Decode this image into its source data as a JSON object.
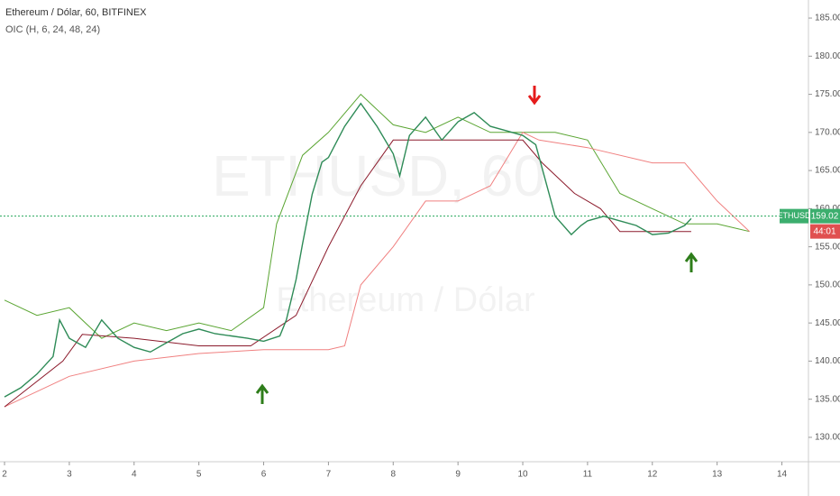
{
  "chart_data": {
    "type": "line",
    "title": "Ethereum / Dólar, 60, BITFINEX",
    "subtitle": "OIC (H, 6, 24, 48, 24)",
    "watermark": "ETHUSD, 60",
    "watermark_subtitle": "Ethereum / Dólar",
    "symbol_label": "ETHUSD",
    "last_price": 159.02,
    "last_price_label": "159.02",
    "countdown": "44:01",
    "grid": false,
    "xlim": [
      1.93,
      14.41
    ],
    "xticks": [
      2,
      3,
      4,
      5,
      6,
      7,
      8,
      9,
      10,
      11,
      12,
      13,
      14
    ],
    "ylim": [
      126.8,
      187.37
    ],
    "yticks": [
      {
        "value": 130,
        "label": "130.00"
      },
      {
        "value": 135,
        "label": "135.00"
      },
      {
        "value": 140,
        "label": "140.00"
      },
      {
        "value": 145,
        "label": "145.00"
      },
      {
        "value": 150,
        "label": "150.00"
      },
      {
        "value": 155,
        "label": "155.00"
      },
      {
        "value": 160,
        "label": "160.00"
      },
      {
        "value": 165,
        "label": "165.00"
      },
      {
        "value": 170,
        "label": "170.00"
      },
      {
        "value": 175,
        "label": "175.00"
      },
      {
        "value": 180,
        "label": "180.00"
      },
      {
        "value": 185,
        "label": "185.00"
      }
    ],
    "series": [
      {
        "color": "#5aa532",
        "x": [
          2,
          2.5,
          3,
          3.5,
          4,
          4.5,
          5,
          5.5,
          6,
          6.2,
          6.6,
          7,
          7.5,
          8,
          8.5,
          9,
          9.5,
          10,
          10.5,
          11,
          11.5,
          12,
          12.5,
          13,
          13.5
        ],
        "values": [
          148,
          146,
          147,
          143,
          145,
          144,
          145,
          144,
          147,
          158,
          167,
          170,
          175,
          171,
          170,
          172,
          170,
          170,
          170,
          169,
          162,
          160,
          158,
          158,
          157
        ]
      },
      {
        "color": "#f08080",
        "x": [
          2,
          3,
          4,
          5,
          6,
          7,
          7.25,
          7.5,
          8,
          8.5,
          9,
          9.5,
          10,
          10.25,
          11,
          12,
          12.5,
          13,
          13.5
        ],
        "values": [
          134,
          138,
          140,
          141,
          141.5,
          141.5,
          142,
          150,
          155,
          161,
          161,
          163,
          170,
          169,
          168,
          166,
          166,
          161,
          157
        ]
      },
      {
        "color": "#8b1a2b",
        "x": [
          2,
          2.9,
          3.2,
          4,
          5,
          5.8,
          6.5,
          7,
          7.5,
          8,
          9,
          10,
          10.3,
          10.8,
          11.2,
          11.5,
          12.6
        ],
        "values": [
          134,
          140,
          143.5,
          143,
          142,
          142,
          146,
          155,
          163,
          169,
          169,
          169,
          166,
          162,
          160,
          157,
          157
        ]
      },
      {
        "color": "#2e8b57",
        "x": [
          2,
          2.25,
          2.5,
          2.75,
          2.85,
          3,
          3.25,
          3.5,
          3.75,
          4,
          4.25,
          4.5,
          4.75,
          5,
          5.25,
          5.5,
          5.75,
          6,
          6.25,
          6.35,
          6.5,
          6.6,
          6.75,
          6.9,
          7,
          7.25,
          7.5,
          7.75,
          8,
          8.1,
          8.25,
          8.5,
          8.75,
          9,
          9.25,
          9.5,
          9.75,
          10,
          10.2,
          10.35,
          10.5,
          10.75,
          10.9,
          11,
          11.25,
          11.5,
          11.75,
          12,
          12.25,
          12.5,
          12.6
        ],
        "values": [
          135.3,
          136.5,
          138.3,
          140.6,
          145.4,
          143,
          141.8,
          145.4,
          143,
          141.8,
          141.2,
          142.4,
          143.6,
          144.2,
          143.6,
          143.3,
          143,
          142.6,
          143.3,
          145.4,
          150.7,
          155.4,
          161.9,
          166.1,
          166.7,
          170.8,
          173.8,
          170.8,
          167.2,
          164.3,
          169.6,
          172,
          169,
          171.4,
          172.6,
          170.8,
          170.2,
          169.6,
          168.4,
          163.7,
          159,
          156.6,
          157.8,
          158.4,
          159,
          158.4,
          157.8,
          156.6,
          156.8,
          157.8,
          158.7
        ]
      }
    ]
  }
}
